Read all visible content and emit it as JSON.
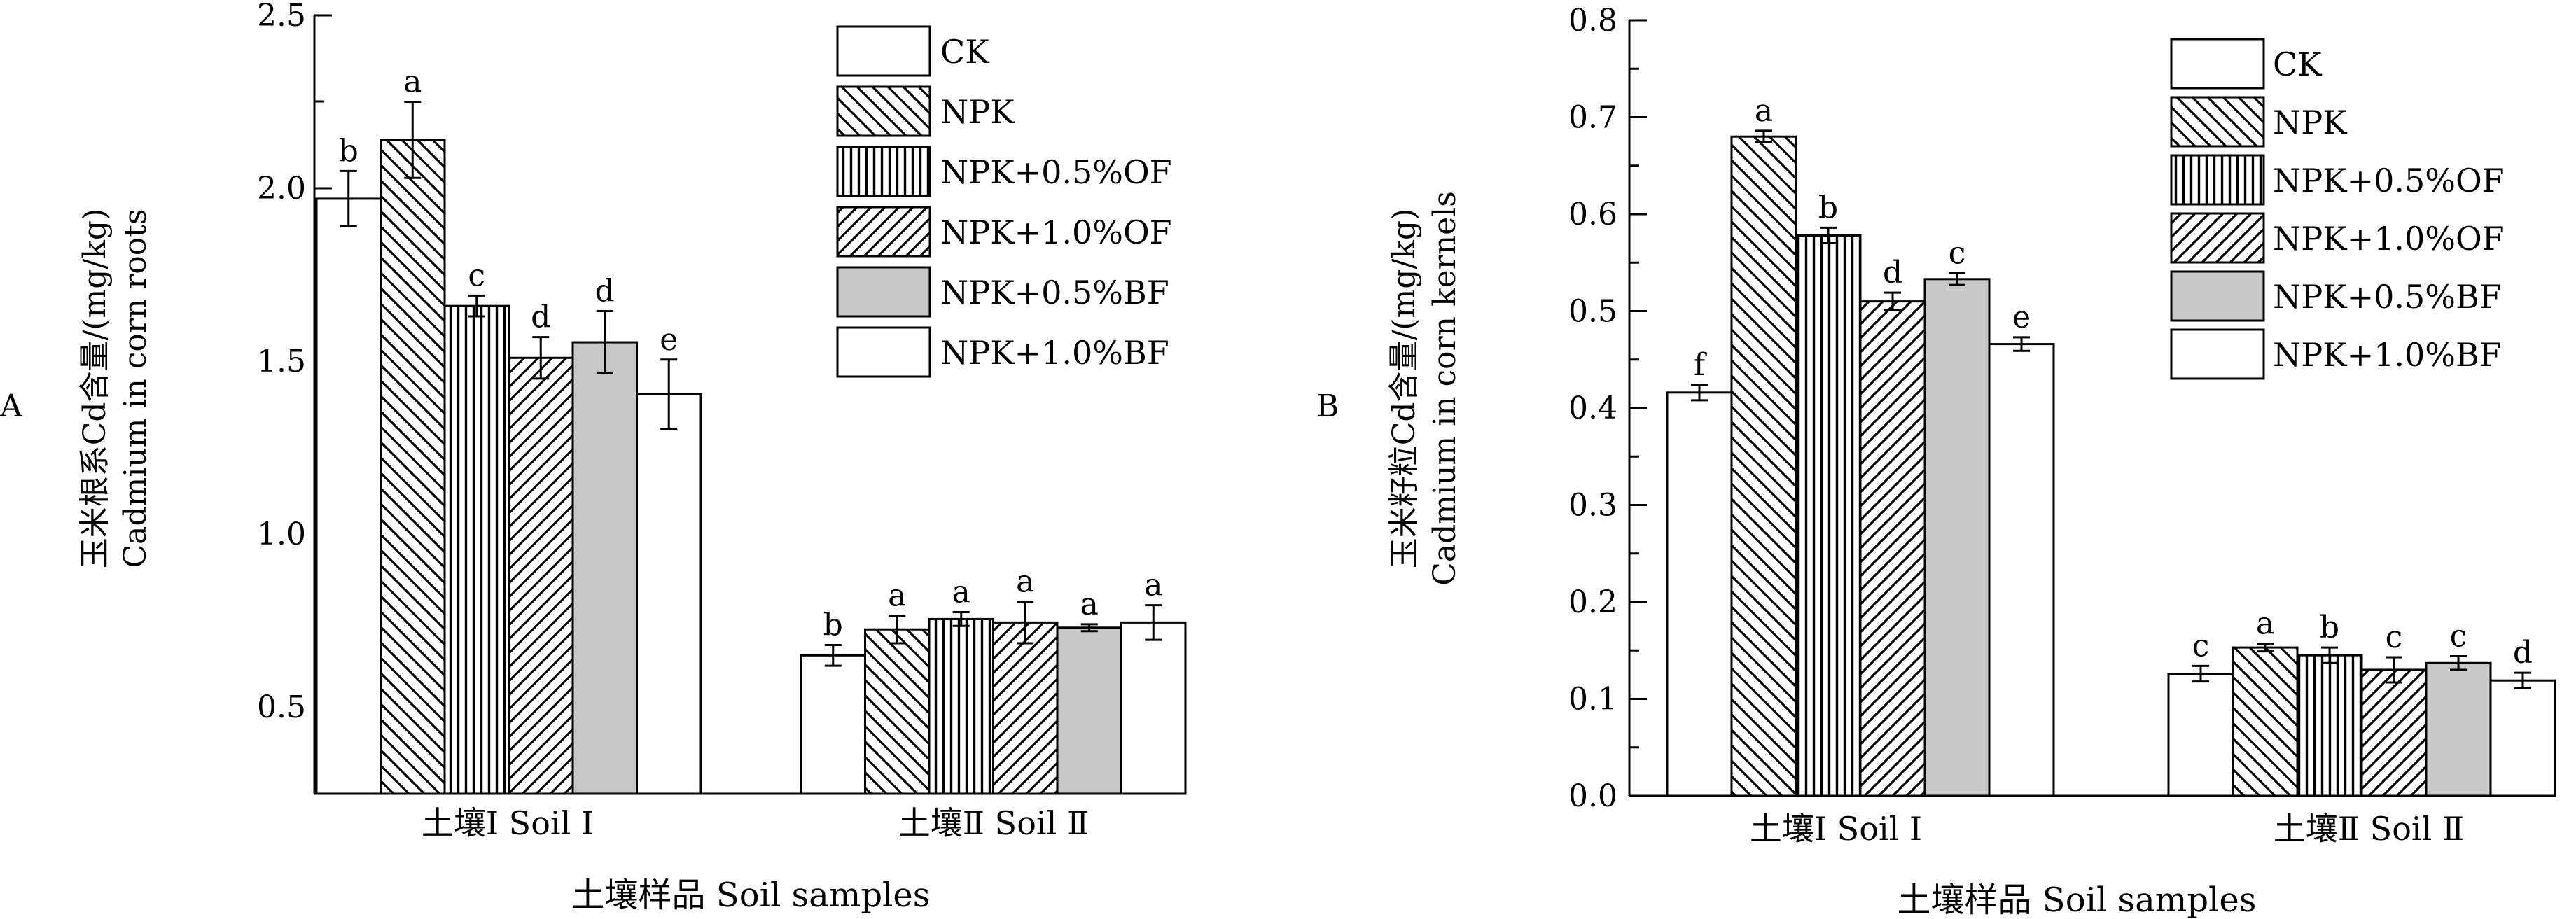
{
  "chart_data": [
    {
      "panel_label": "A",
      "type": "bar",
      "categories": [
        "土壤Ⅰ Soil Ⅰ",
        "土壤Ⅱ Soil Ⅱ"
      ],
      "series": [
        {
          "name": "CK",
          "values": [
            1.97,
            0.65
          ],
          "errors": [
            0.08,
            0.03
          ],
          "letters": [
            "b",
            "b"
          ]
        },
        {
          "name": "NPK",
          "values": [
            2.14,
            0.725
          ],
          "errors": [
            0.11,
            0.04
          ],
          "letters": [
            "a",
            "a"
          ]
        },
        {
          "name": "NPK+0.5%OF",
          "values": [
            1.66,
            0.755
          ],
          "errors": [
            0.03,
            0.02
          ],
          "letters": [
            "c",
            "a"
          ]
        },
        {
          "name": "NPK+1.0%OF",
          "values": [
            1.51,
            0.745
          ],
          "errors": [
            0.06,
            0.06
          ],
          "letters": [
            "d",
            "a"
          ]
        },
        {
          "name": "NPK+0.5%BF",
          "values": [
            1.555,
            0.73
          ],
          "errors": [
            0.09,
            0.01
          ],
          "letters": [
            "d",
            "a"
          ]
        },
        {
          "name": "NPK+1.0%BF",
          "values": [
            1.405,
            0.745
          ],
          "errors": [
            0.1,
            0.05
          ],
          "letters": [
            "e",
            "a"
          ]
        }
      ],
      "ylabel_cn": "玉米根系Cd含量/(mg/kg)",
      "ylabel_en": "Cadmium in corn roots",
      "xlabel": "土壤样品  Soil samples",
      "ylim": [
        0.25,
        2.5
      ],
      "yticks": [
        "0.5",
        "1.0",
        "1.5",
        "2.0",
        "2.5"
      ],
      "legend_position": "top-right"
    },
    {
      "panel_label": "B",
      "type": "bar",
      "categories": [
        "土壤Ⅰ Soil Ⅰ",
        "土壤Ⅱ Soil Ⅱ"
      ],
      "series": [
        {
          "name": "CK",
          "values": [
            0.416,
            0.126
          ],
          "errors": [
            0.008,
            0.008
          ],
          "letters": [
            "f",
            "c"
          ]
        },
        {
          "name": "NPK",
          "values": [
            0.68,
            0.153
          ],
          "errors": [
            0.006,
            0.004
          ],
          "letters": [
            "a",
            "a"
          ]
        },
        {
          "name": "NPK+0.5%OF",
          "values": [
            0.578,
            0.145
          ],
          "errors": [
            0.008,
            0.008
          ],
          "letters": [
            "b",
            "b"
          ]
        },
        {
          "name": "NPK+1.0%OF",
          "values": [
            0.51,
            0.13
          ],
          "errors": [
            0.009,
            0.013
          ],
          "letters": [
            "d",
            "c"
          ]
        },
        {
          "name": "NPK+0.5%BF",
          "values": [
            0.533,
            0.137
          ],
          "errors": [
            0.006,
            0.007
          ],
          "letters": [
            "c",
            "c"
          ]
        },
        {
          "name": "NPK+1.0%BF",
          "values": [
            0.466,
            0.119
          ],
          "errors": [
            0.007,
            0.008
          ],
          "letters": [
            "e",
            "d"
          ]
        }
      ],
      "ylabel_cn": "玉米籽粒Cd含量/(mg/kg)",
      "ylabel_en": "Cadmium in corn kernels",
      "xlabel": "土壤样品  Soil samples",
      "ylim": [
        0.0,
        0.8
      ],
      "yticks": [
        "0.0",
        "0.1",
        "0.2",
        "0.3",
        "0.4",
        "0.5",
        "0.6",
        "0.7",
        "0.8"
      ],
      "legend_position": "top-right"
    }
  ]
}
